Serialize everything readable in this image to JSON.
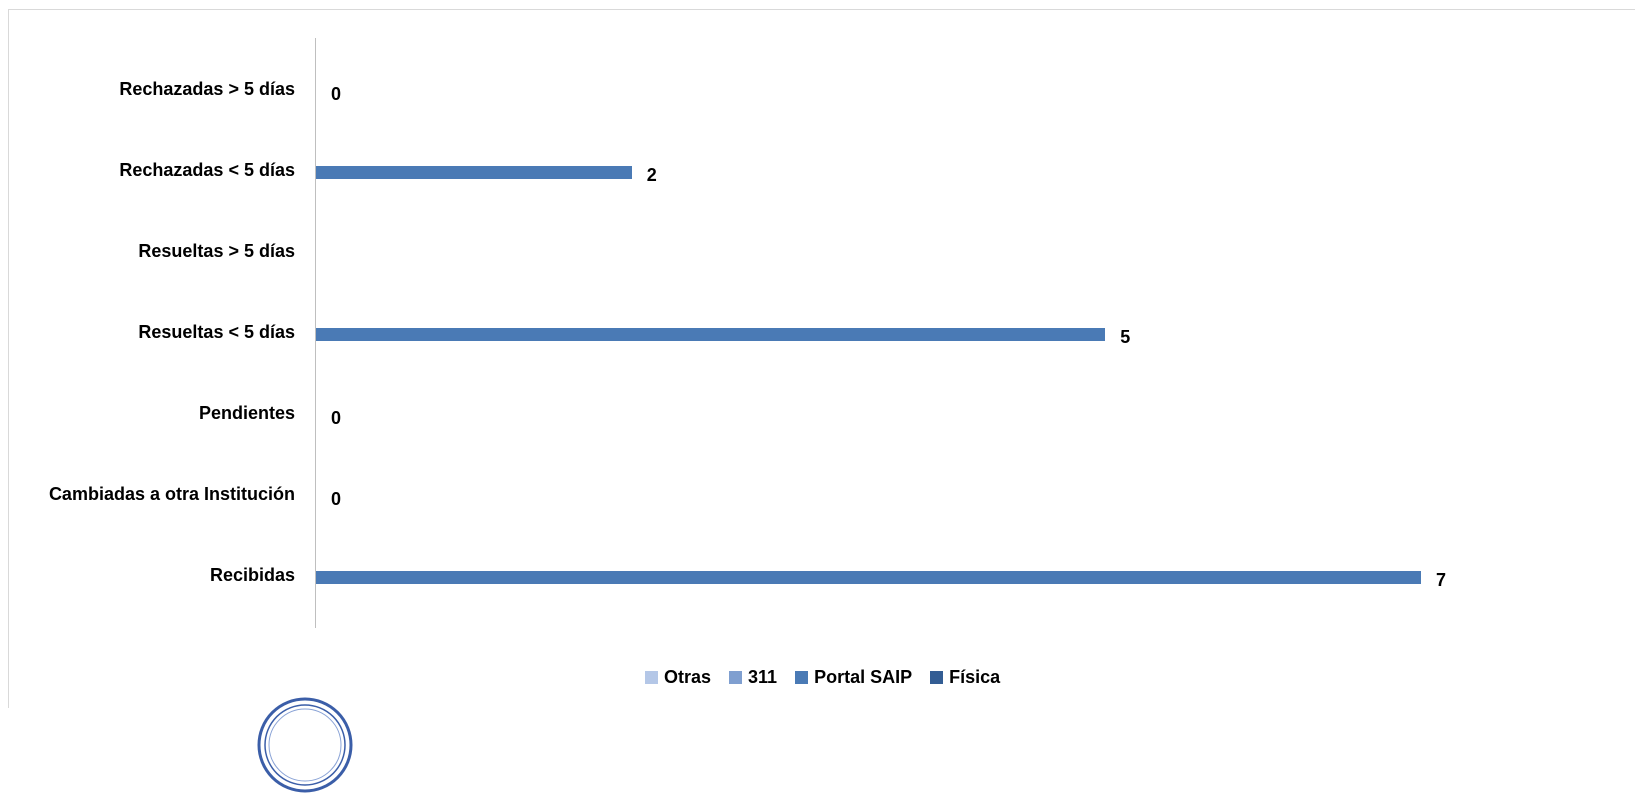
{
  "chart_data": {
    "type": "bar",
    "orientation": "horizontal",
    "categories": [
      "Rechazadas  > 5 días",
      "Rechazadas  < 5 días",
      "Resueltas > 5 días",
      "Resueltas < 5 días",
      "Pendientes",
      "Cambiadas a otra Institución",
      "Recibidas"
    ],
    "values": [
      0,
      2,
      null,
      5,
      0,
      0,
      7
    ],
    "value_labels": [
      "0",
      "2",
      "",
      "5",
      "0",
      "0",
      "7"
    ],
    "xlim": [
      0,
      7
    ],
    "grid": false,
    "legend": {
      "placement": "bottom",
      "entries": [
        {
          "name": "Otras",
          "color": "#b4c7e7"
        },
        {
          "name": "311",
          "color": "#7f9fd0"
        },
        {
          "name": "Portal SAIP",
          "color": "#4a7ab5"
        },
        {
          "name": "Física",
          "color": "#335d94"
        }
      ]
    },
    "bar_color": "#4a7ab5"
  },
  "logo": {
    "icon": "seal-logo"
  }
}
